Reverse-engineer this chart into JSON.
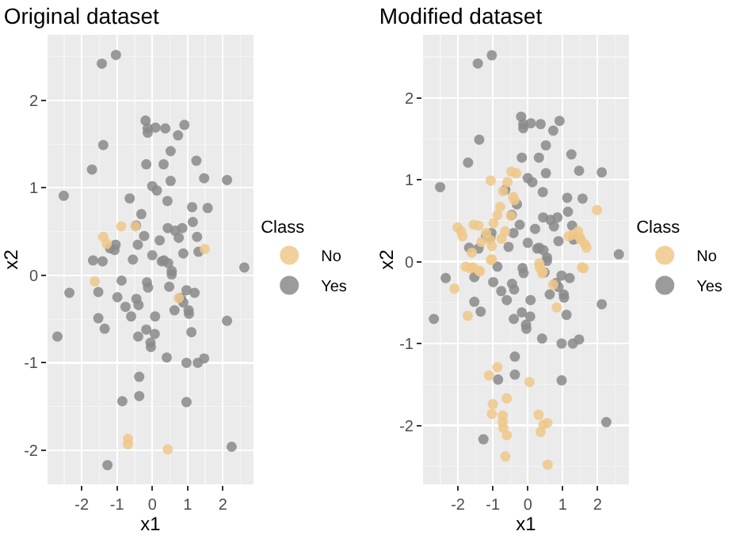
{
  "chart_data": [
    {
      "type": "scatter",
      "title": "Original dataset",
      "xlabel": "x1",
      "ylabel": "x2",
      "legend_title": "Class",
      "legend": "right",
      "grid": true,
      "marker": "circle",
      "xlim": [
        -2.97,
        2.87
      ],
      "ylim": [
        -2.39,
        2.75
      ],
      "xticks": [
        -2,
        -1,
        0,
        1,
        2
      ],
      "yticks": [
        -2,
        -1,
        0,
        1,
        2
      ],
      "series": [
        {
          "name": "No",
          "color": "#efc88a",
          "x": [
            -0.88,
            -0.48,
            -1.39,
            -1.29,
            1.49,
            -1.63,
            0.75,
            -0.69,
            -0.69,
            0.44
          ],
          "values": [
            0.56,
            0.56,
            0.44,
            0.36,
            0.3,
            -0.07,
            -0.26,
            -1.87,
            -1.93,
            -1.99
          ]
        },
        {
          "name": "Yes",
          "color": "#8a8a8a",
          "x": [
            -1.43,
            -1.03,
            -1.39,
            -1.71,
            -2.51,
            -0.19,
            -0.13,
            -0.13,
            0.09,
            0.37,
            0.91,
            0.73,
            0.52,
            -0.17,
            0.32,
            1.25,
            1.47,
            2.12,
            0.52,
            0,
            0.13,
            -0.64,
            0.43,
            1.13,
            1.57,
            -0.31,
            -0.46,
            1.15,
            0.44,
            0.65,
            0.85,
            -0.23,
            1.27,
            0.21,
            0.75,
            -1.2,
            -1.04,
            -1.07,
            -0.41,
            1.31,
            0.88,
            -1.68,
            -1.41,
            -0.55,
            0,
            0.27,
            0.33,
            0.45,
            0.55,
            0.55,
            2.61,
            -2.35,
            -1.53,
            -0.87,
            -0.15,
            -0.12,
            -0.99,
            -0.45,
            -0.39,
            -0.76,
            -0.6,
            0.48,
            0.97,
            1.2,
            0.81,
            0.88,
            0.63,
            1.03,
            1.04,
            0.08,
            -1.53,
            2.12,
            -1.35,
            -2.69,
            -0.17,
            -0.4,
            0.07,
            1.11,
            -0.05,
            -0.04,
            0.41,
            0.97,
            1.29,
            1.47,
            -0.37,
            -0.37,
            -0.85,
            0.97,
            2.25,
            -1.27
          ],
          "values": [
            2.42,
            2.52,
            1.49,
            1.21,
            0.91,
            1.77,
            1.68,
            1.63,
            1.69,
            1.68,
            1.72,
            1.6,
            1.42,
            1.27,
            1.27,
            1.31,
            1.11,
            1.09,
            1.08,
            1.02,
            0.97,
            0.88,
            0.85,
            0.78,
            0.77,
            0.7,
            0.57,
            0.61,
            0.54,
            0.51,
            0.54,
            0.45,
            0.44,
            0.4,
            0.43,
            0.31,
            0.35,
            0.29,
            0.35,
            0.27,
            0.25,
            0.17,
            0.16,
            0.18,
            0.23,
            0.16,
            0.17,
            0.14,
            0.05,
            0.01,
            0.09,
            -0.2,
            -0.19,
            -0.06,
            -0.08,
            -0.14,
            -0.25,
            -0.27,
            -0.34,
            -0.36,
            -0.47,
            -0.13,
            -0.17,
            -0.2,
            -0.26,
            -0.31,
            -0.4,
            -0.4,
            -0.44,
            -0.47,
            -0.49,
            -0.52,
            -0.61,
            -0.7,
            -0.62,
            -0.7,
            -0.67,
            -0.65,
            -0.77,
            -0.82,
            -0.94,
            -1,
            -1,
            -0.95,
            -1.16,
            -1.38,
            -1.44,
            -1.45,
            -1.96,
            -2.17
          ]
        }
      ]
    },
    {
      "type": "scatter",
      "title": "Modified dataset",
      "xlabel": "x1",
      "ylabel": "x2",
      "legend_title": "Class",
      "legend": "right",
      "grid": true,
      "marker": "circle",
      "xlim": [
        -3.0,
        2.9
      ],
      "ylim": [
        -2.72,
        2.77
      ],
      "xticks": [
        -2,
        -1,
        0,
        1,
        2
      ],
      "yticks": [
        -2,
        -1,
        0,
        1,
        2
      ],
      "series": [
        {
          "name": "No",
          "color": "#efc88a",
          "x": [
            -1.06,
            -0.47,
            -0.33,
            -0.58,
            -0.71,
            -0.42,
            -0.38,
            -0.79,
            -0.87,
            -0.98,
            1.98,
            -2.01,
            -1.91,
            -1.87,
            -1.55,
            -1.41,
            -1.19,
            -1.08,
            -1.03,
            -1.33,
            -0.75,
            -0.65,
            1.17,
            1.3,
            1.44,
            1.52,
            1.64,
            1.68,
            -1.6,
            -1.03,
            -1.57,
            -1.78,
            -1.37,
            0.33,
            0.43,
            1.55,
            -1.65,
            -1.4,
            -2.1,
            -1.06,
            0.34,
            0.41,
            0.73,
            0.83,
            1.6,
            -1.72,
            -0.87,
            -1.11,
            0.05,
            -0.6,
            -1.0,
            -1.03,
            -0.72,
            -0.72,
            -0.7,
            -0.6,
            -0.64,
            0.31,
            0.45,
            0.56,
            0.37,
            0.57,
            -0.48,
            1.49
          ],
          "values": [
            0.99,
            1.1,
            1.08,
            0.97,
            0.86,
            0.79,
            0.75,
            0.67,
            0.57,
            0.47,
            0.63,
            0.42,
            0.37,
            0.31,
            0.45,
            0.44,
            0.35,
            0.27,
            0.19,
            0.24,
            0.28,
            0.37,
            0.31,
            0.33,
            0.37,
            0.27,
            0.21,
            0.17,
            0.11,
            0.03,
            -0.07,
            -0.06,
            -0.12,
            -0.02,
            -0.12,
            -0.07,
            -0.08,
            -0.11,
            -0.33,
            0.02,
            -0.07,
            -0.14,
            -0.28,
            -0.56,
            -0.08,
            -0.66,
            -1.29,
            -1.39,
            -1.47,
            -1.67,
            -1.74,
            -1.86,
            -1.88,
            -1.96,
            -2.03,
            -2.12,
            -2.38,
            -1.87,
            -1.99,
            -1.97,
            -2.08,
            -2.48,
            0.56,
            0.3
          ]
        },
        {
          "name": "Yes",
          "color": "#8a8a8a",
          "x": [
            -1.43,
            -1.03,
            -1.39,
            -1.71,
            -2.51,
            -0.19,
            -0.13,
            -0.13,
            0.09,
            0.37,
            0.91,
            0.73,
            0.52,
            -0.17,
            0.32,
            1.25,
            1.47,
            2.12,
            0.52,
            0,
            0.13,
            -0.64,
            0.43,
            1.13,
            1.57,
            -0.31,
            -0.46,
            1.15,
            0.44,
            0.65,
            0.85,
            -0.23,
            1.27,
            0.21,
            0.75,
            -1.2,
            -1.04,
            -1.07,
            -0.41,
            1.31,
            0.88,
            -1.68,
            -1.41,
            -0.55,
            0,
            0.27,
            0.33,
            0.45,
            0.55,
            0.55,
            2.61,
            -2.35,
            -1.53,
            -0.87,
            -0.15,
            -0.12,
            -0.99,
            -0.45,
            -0.39,
            -0.76,
            -0.6,
            0.48,
            0.97,
            1.2,
            0.81,
            0.88,
            0.63,
            1.03,
            1.04,
            0.08,
            -1.53,
            2.12,
            -1.35,
            -2.69,
            -0.17,
            -0.4,
            0.07,
            1.11,
            -0.05,
            -0.04,
            0.41,
            0.97,
            1.29,
            1.47,
            -0.37,
            -0.37,
            -0.85,
            0.97,
            2.25,
            -1.27
          ],
          "values": [
            2.42,
            2.52,
            1.49,
            1.21,
            0.91,
            1.77,
            1.68,
            1.63,
            1.69,
            1.68,
            1.72,
            1.6,
            1.42,
            1.27,
            1.27,
            1.31,
            1.11,
            1.09,
            1.08,
            1.02,
            0.97,
            0.88,
            0.85,
            0.78,
            0.77,
            0.7,
            0.57,
            0.61,
            0.54,
            0.51,
            0.54,
            0.45,
            0.44,
            0.4,
            0.43,
            0.31,
            0.35,
            0.29,
            0.35,
            0.27,
            0.25,
            0.17,
            0.16,
            0.18,
            0.23,
            0.16,
            0.17,
            0.14,
            0.05,
            0.01,
            0.09,
            -0.2,
            -0.19,
            -0.06,
            -0.08,
            -0.14,
            -0.25,
            -0.27,
            -0.34,
            -0.36,
            -0.47,
            -0.13,
            -0.17,
            -0.2,
            -0.26,
            -0.31,
            -0.4,
            -0.4,
            -0.44,
            -0.47,
            -0.49,
            -0.52,
            -0.61,
            -0.7,
            -0.62,
            -0.7,
            -0.67,
            -0.65,
            -0.77,
            -0.82,
            -0.94,
            -1,
            -1,
            -0.95,
            -1.16,
            -1.38,
            -1.44,
            -1.45,
            -1.96,
            -2.17
          ]
        }
      ]
    }
  ]
}
